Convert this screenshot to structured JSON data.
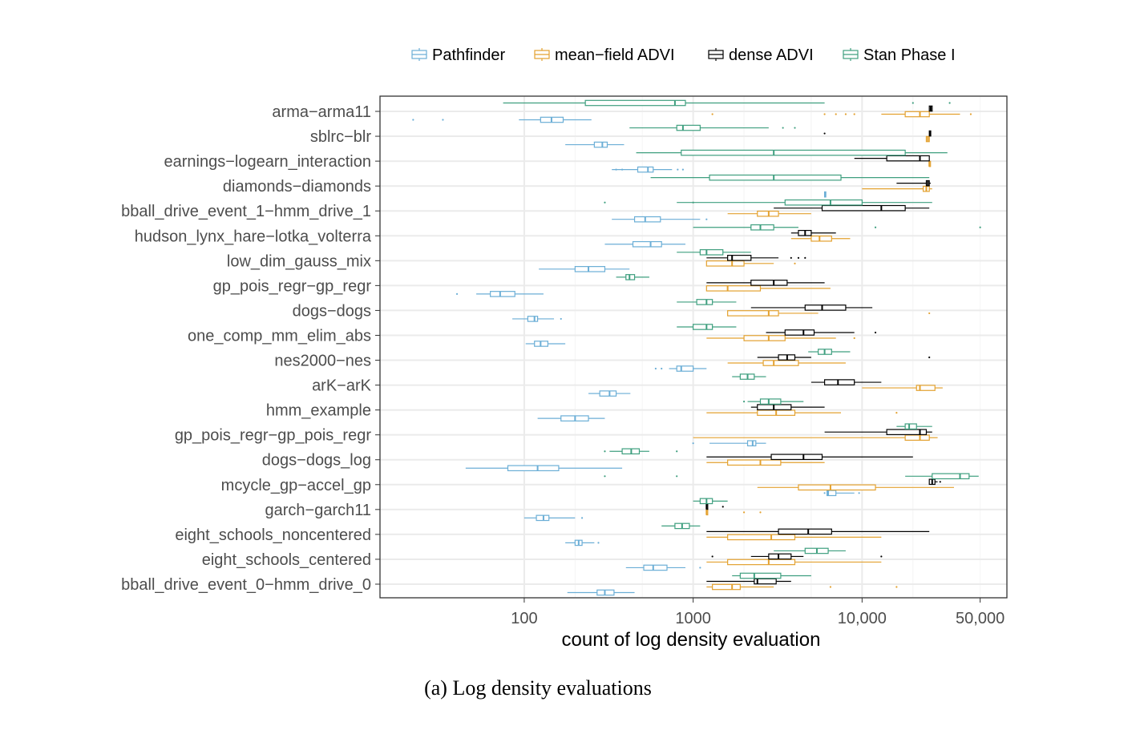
{
  "chart_data": {
    "type": "boxplot",
    "xlabel": "count of log density evaluation",
    "x_scale": "log10",
    "xlim": [
      14,
      72000
    ],
    "x_ticks": [
      100,
      1000,
      10000,
      50000
    ],
    "x_tick_labels": [
      "100",
      "1000",
      "10,000",
      "50,000"
    ],
    "grid": true,
    "legend_position": "top",
    "caption": "(a) Log density evaluations",
    "methods": [
      {
        "name": "Pathfinder",
        "color": "#6baed6"
      },
      {
        "name": "mean−field ADVI",
        "color": "#e3a12f"
      },
      {
        "name": "dense ADVI",
        "color": "#000000"
      },
      {
        "name": "Stan Phase I",
        "color": "#3f9f7f"
      }
    ],
    "categories": [
      "arma−arma11",
      "sblrc−blr",
      "earnings−logearn_interaction",
      "diamonds−diamonds",
      "bball_drive_event_1−hmm_drive_1",
      "hudson_lynx_hare−lotka_volterra",
      "low_dim_gauss_mix",
      "gp_pois_regr−gp_regr",
      "dogs−dogs",
      "one_comp_mm_elim_abs",
      "nes2000−nes",
      "arK−arK",
      "hmm_example",
      "gp_pois_regr−gp_pois_regr",
      "dogs−dogs_log",
      "mcycle_gp−accel_gp",
      "garch−garch11",
      "eight_schools_noncentered",
      "eight_schools_centered",
      "bball_drive_event_0−hmm_drive_0"
    ],
    "series": [
      {
        "name": "Pathfinder",
        "boxes": [
          [
            93,
            125,
            145,
            170,
            250,
            [
              22,
              33
            ]
          ],
          [
            175,
            260,
            290,
            310,
            390,
            []
          ],
          [
            330,
            470,
            540,
            580,
            750,
            [
              350,
              380,
              810,
              870
            ]
          ],
          [
            6000,
            6000,
            6050,
            6100,
            6100,
            []
          ],
          [
            330,
            450,
            520,
            640,
            1100,
            [
              1200
            ]
          ],
          [
            300,
            440,
            560,
            650,
            900,
            []
          ],
          [
            122,
            200,
            240,
            300,
            420,
            []
          ],
          [
            52,
            63,
            72,
            88,
            130,
            [
              40
            ]
          ],
          [
            85,
            105,
            115,
            120,
            150,
            [
              165
            ]
          ],
          [
            102,
            115,
            125,
            138,
            175,
            []
          ],
          [
            720,
            800,
            850,
            1000,
            1200,
            [
              600,
              650
            ]
          ],
          [
            240,
            280,
            320,
            350,
            425,
            []
          ],
          [
            120,
            165,
            200,
            240,
            300,
            []
          ],
          [
            1250,
            2100,
            2250,
            2350,
            2700,
            [
              1000
            ]
          ],
          [
            45,
            80,
            120,
            160,
            380,
            []
          ],
          [
            6200,
            6200,
            6300,
            7000,
            9000,
            [
              6000,
              9600
            ]
          ],
          [
            100,
            118,
            130,
            140,
            200,
            [
              220
            ]
          ],
          [
            175,
            200,
            210,
            220,
            260,
            [
              275
            ]
          ],
          [
            400,
            510,
            580,
            700,
            900,
            [
              1100
            ]
          ],
          [
            180,
            270,
            300,
            340,
            450,
            []
          ]
        ]
      },
      {
        "name": "mean−field ADVI",
        "boxes": [
          [
            13000,
            18000,
            22000,
            25000,
            38000,
            [
              6000,
              7000,
              8000,
              9000,
              1300,
              44000
            ]
          ],
          [
            24000,
            24000,
            24500,
            25000,
            25000,
            []
          ],
          [
            25000,
            25000,
            25000,
            25000,
            25000,
            []
          ],
          [
            10000,
            23000,
            24000,
            25000,
            26000,
            []
          ],
          [
            1600,
            2400,
            2800,
            3200,
            5000,
            []
          ],
          [
            3800,
            5000,
            5600,
            6600,
            8500,
            []
          ],
          [
            1200,
            1200,
            1700,
            2000,
            3000,
            [
              4000
            ]
          ],
          [
            1200,
            1200,
            1600,
            2500,
            6500,
            []
          ],
          [
            1600,
            1600,
            2800,
            3200,
            5500,
            [
              25000
            ]
          ],
          [
            1200,
            2000,
            2800,
            3500,
            7000,
            [
              9000
            ]
          ],
          [
            1600,
            2600,
            3000,
            4200,
            8000,
            []
          ],
          [
            10000,
            21000,
            22000,
            27000,
            30000,
            []
          ],
          [
            1200,
            2400,
            3100,
            4000,
            7500,
            [
              16000
            ]
          ],
          [
            1000,
            18000,
            22000,
            25000,
            28000,
            []
          ],
          [
            1200,
            1600,
            2500,
            3300,
            6000,
            []
          ],
          [
            2400,
            4200,
            6500,
            12000,
            35000,
            []
          ],
          [
            1200,
            1200,
            1200,
            1200,
            1200,
            [
              2000,
              2500
            ]
          ],
          [
            1200,
            1600,
            2900,
            4000,
            13000,
            []
          ],
          [
            1200,
            1600,
            2800,
            4000,
            13000,
            []
          ],
          [
            1200,
            1300,
            1700,
            1900,
            3000,
            [
              6500,
              16000
            ]
          ]
        ]
      },
      {
        "name": "dense ADVI",
        "boxes": [
          [
            25000,
            25000,
            25500,
            26000,
            26000,
            []
          ],
          [
            25000,
            25000,
            25300,
            25500,
            25500,
            [
              6000
            ]
          ],
          [
            9000,
            14000,
            22000,
            25000,
            25000,
            []
          ],
          [
            16000,
            24000,
            24500,
            25000,
            25500,
            []
          ],
          [
            3000,
            5800,
            13000,
            18000,
            25000,
            []
          ],
          [
            3800,
            4200,
            4600,
            5000,
            7000,
            []
          ],
          [
            1200,
            1600,
            1700,
            2200,
            3200,
            [
              3800,
              4200,
              4600
            ]
          ],
          [
            1200,
            2200,
            3000,
            3600,
            6000,
            []
          ],
          [
            2200,
            4600,
            5800,
            8000,
            11500,
            []
          ],
          [
            2700,
            3500,
            4500,
            5200,
            9000,
            [
              12000
            ]
          ],
          [
            2400,
            3200,
            3600,
            4000,
            5000,
            [
              25000
            ]
          ],
          [
            5000,
            6000,
            7200,
            9000,
            13000,
            []
          ],
          [
            2200,
            2400,
            3000,
            3800,
            6000,
            []
          ],
          [
            6000,
            14000,
            22000,
            24000,
            26000,
            []
          ],
          [
            1200,
            2900,
            4500,
            5800,
            20000,
            []
          ],
          [
            25000,
            25000,
            26000,
            27000,
            28000,
            [
              29000
            ]
          ],
          [
            1200,
            1200,
            1200,
            1200,
            1200,
            [
              1500
            ]
          ],
          [
            1200,
            3200,
            4800,
            6600,
            25000,
            []
          ],
          [
            2200,
            2800,
            3200,
            3800,
            4500,
            [
              1300,
              13000
            ]
          ],
          [
            1200,
            2300,
            2400,
            3100,
            3800,
            []
          ]
        ]
      },
      {
        "name": "Stan Phase I",
        "boxes": [
          [
            75,
            230,
            780,
            900,
            6000,
            [
              20000,
              33000
            ]
          ],
          [
            420,
            800,
            870,
            1100,
            2800,
            [
              3400,
              4000
            ]
          ],
          [
            460,
            850,
            3000,
            18000,
            32000,
            []
          ],
          [
            560,
            1250,
            3000,
            7500,
            25000,
            []
          ],
          [
            800,
            3500,
            6500,
            10000,
            26000,
            [
              300,
              1000
            ]
          ],
          [
            1000,
            2200,
            2500,
            3000,
            4200,
            [
              12000,
              50000
            ]
          ],
          [
            800,
            1100,
            1200,
            1500,
            2200,
            []
          ],
          [
            350,
            400,
            420,
            450,
            550,
            []
          ],
          [
            800,
            1050,
            1200,
            1300,
            1800,
            []
          ],
          [
            800,
            1000,
            1200,
            1300,
            1800,
            []
          ],
          [
            4800,
            5500,
            6000,
            6600,
            8500,
            []
          ],
          [
            1700,
            1900,
            2100,
            2300,
            2700,
            []
          ],
          [
            2100,
            2500,
            2800,
            3300,
            4500,
            [
              2000
            ]
          ],
          [
            16000,
            18000,
            19000,
            21000,
            26000,
            []
          ],
          [
            320,
            380,
            430,
            480,
            550,
            [
              300,
              800
            ]
          ],
          [
            18000,
            26000,
            38000,
            43000,
            49000,
            [
              300,
              800
            ]
          ],
          [
            1000,
            1100,
            1200,
            1300,
            1600,
            []
          ],
          [
            650,
            780,
            860,
            950,
            1100,
            []
          ],
          [
            3000,
            4600,
            5400,
            6300,
            8000,
            []
          ],
          [
            1700,
            1900,
            2300,
            3300,
            5000,
            []
          ]
        ]
      }
    ]
  }
}
